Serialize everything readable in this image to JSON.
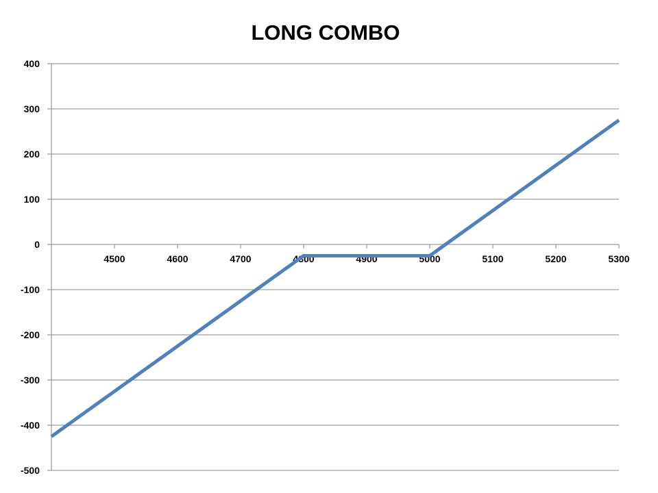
{
  "chart_data": {
    "type": "line",
    "title": "LONG COMBO",
    "xlabel": "",
    "ylabel": "",
    "xlim": [
      4400,
      5300
    ],
    "ylim": [
      -500,
      400
    ],
    "x_ticks": [
      4500,
      4600,
      4700,
      4800,
      4900,
      5000,
      5100,
      5200,
      5300
    ],
    "y_ticks": [
      400,
      300,
      200,
      100,
      0,
      -100,
      -200,
      -300,
      -400,
      -500
    ],
    "grid": "horizontal",
    "legend": "none",
    "series": [
      {
        "color": "#4F81BD",
        "x": [
          4400,
          4800,
          5000,
          5300
        ],
        "y": [
          -425,
          -25,
          -25,
          275
        ]
      }
    ]
  }
}
